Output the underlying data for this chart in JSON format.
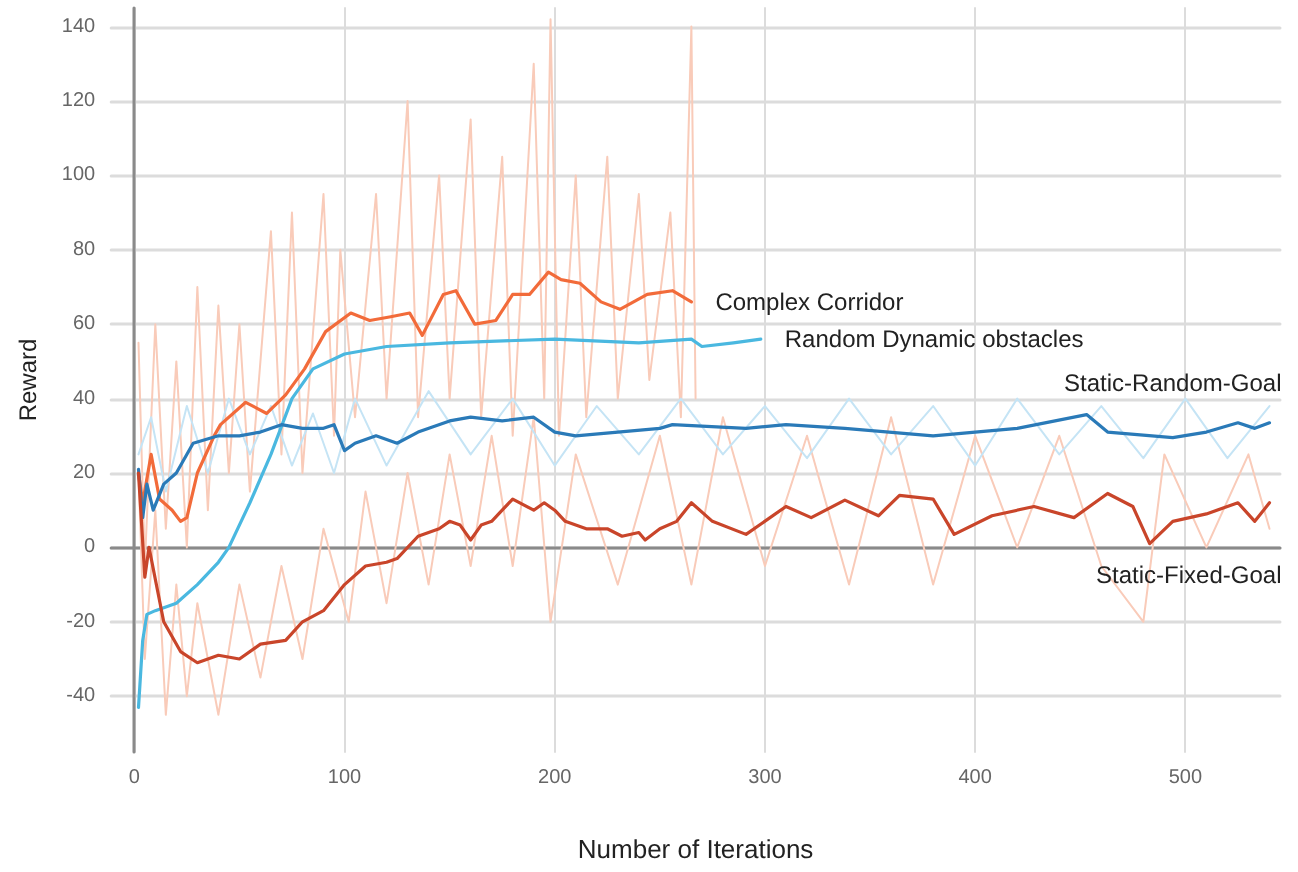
{
  "chart_data": {
    "type": "line",
    "xlabel": "Number of Iterations",
    "ylabel": "Reward",
    "xlim": [
      -11,
      545
    ],
    "ylim": [
      -55,
      145
    ],
    "xticks": [
      0,
      100,
      200,
      300,
      400,
      500
    ],
    "yticks": [
      -40,
      -20,
      0,
      20,
      40,
      60,
      80,
      100,
      120,
      140
    ],
    "grid": true,
    "marker": "none",
    "line_style": "solid",
    "series": [
      {
        "color": "#f9cbb9",
        "x": [
          2,
          5,
          10,
          15,
          20,
          25,
          30,
          35,
          40,
          45,
          50,
          55,
          65,
          70,
          75,
          80,
          90,
          95,
          98,
          105,
          115,
          120,
          130,
          135,
          145,
          150,
          160,
          165,
          175,
          180,
          190,
          195,
          198,
          202,
          210,
          215,
          225,
          230,
          240,
          245,
          255,
          260,
          265,
          267
        ],
        "values": [
          55,
          -5,
          60,
          5,
          50,
          0,
          70,
          10,
          65,
          20,
          60,
          15,
          85,
          25,
          90,
          20,
          95,
          30,
          80,
          35,
          95,
          40,
          120,
          35,
          100,
          40,
          115,
          35,
          105,
          30,
          130,
          40,
          142,
          30,
          100,
          35,
          105,
          40,
          95,
          45,
          90,
          35,
          140,
          40
        ]
      },
      {
        "color": "#f9cbb9",
        "x": [
          2,
          5,
          10,
          15,
          20,
          25,
          30,
          40,
          50,
          60,
          70,
          80,
          90,
          102,
          110,
          120,
          130,
          140,
          150,
          160,
          170,
          180,
          190,
          198,
          210,
          230,
          250,
          265,
          280,
          300,
          320,
          340,
          360,
          380,
          400,
          420,
          440,
          460,
          480,
          490,
          510,
          530,
          540
        ],
        "values": [
          20,
          -30,
          10,
          -45,
          -10,
          -40,
          -15,
          -45,
          -10,
          -35,
          -5,
          -30,
          5,
          -20,
          15,
          -15,
          20,
          -10,
          25,
          -5,
          30,
          -5,
          35,
          -20,
          25,
          -10,
          30,
          -10,
          35,
          -5,
          30,
          -10,
          35,
          -10,
          30,
          0,
          30,
          -5,
          -20,
          25,
          0,
          25,
          5
        ]
      },
      {
        "color": "#c5e4f5",
        "x": [
          2,
          8,
          15,
          25,
          35,
          45,
          55,
          65,
          75,
          85,
          95,
          105,
          120,
          140,
          160,
          180,
          200,
          220,
          240,
          260,
          280,
          300,
          320,
          340,
          360,
          380,
          400,
          420,
          440,
          460,
          480,
          500,
          520,
          540
        ],
        "values": [
          25,
          35,
          15,
          38,
          20,
          40,
          25,
          38,
          22,
          36,
          20,
          40,
          22,
          42,
          25,
          40,
          22,
          38,
          25,
          40,
          25,
          38,
          24,
          40,
          25,
          38,
          22,
          40,
          25,
          38,
          24,
          40,
          24,
          38
        ]
      },
      {
        "name": "Complex Corridor",
        "color": "#f26b3a",
        "x": [
          2,
          4,
          8,
          12,
          18,
          22,
          25,
          30,
          38,
          41,
          53,
          63,
          72,
          81,
          91,
          103,
          112,
          122,
          131,
          137,
          147,
          153,
          162,
          172,
          180,
          188,
          197,
          203,
          212,
          222,
          231,
          244,
          256,
          265
        ],
        "values": [
          20,
          12,
          25,
          13,
          10,
          7,
          8,
          20,
          30,
          33,
          39,
          36,
          41,
          48,
          58,
          63,
          61,
          62,
          63,
          57,
          68,
          69,
          60,
          61,
          68,
          68,
          74,
          72,
          71,
          66,
          64,
          68,
          69,
          66
        ]
      },
      {
        "name": "Random Dynamic obstacles",
        "color": "#4ab8e0",
        "x": [
          2,
          4,
          6,
          10,
          20,
          30,
          40,
          45,
          55,
          65,
          75,
          85,
          100,
          120,
          150,
          200,
          240,
          265,
          270,
          285,
          298
        ],
        "values": [
          -43,
          -25,
          -18,
          -17,
          -15,
          -10,
          -4,
          0,
          12,
          25,
          40,
          48,
          52,
          54,
          55,
          56,
          55,
          56,
          54,
          55,
          56
        ]
      },
      {
        "name": "Static-Random-Goal",
        "color": "#2a7ab8",
        "x": [
          2,
          4,
          6,
          9,
          14,
          20,
          28,
          40,
          50,
          60,
          70,
          80,
          90,
          95,
          100,
          105,
          115,
          125,
          135,
          150,
          160,
          175,
          190,
          200,
          210,
          230,
          250,
          256,
          291,
          310,
          338,
          380,
          420,
          453,
          463,
          494,
          510,
          525,
          533,
          540
        ],
        "values": [
          21,
          8,
          17,
          10,
          17,
          20,
          28,
          30,
          30,
          31,
          33,
          32,
          32,
          33,
          26,
          28,
          30,
          28,
          31,
          34,
          35,
          34,
          35,
          31,
          30,
          31,
          32,
          33,
          32,
          33,
          32,
          30,
          32,
          35.7,
          31,
          29.5,
          31,
          33.5,
          32,
          33.5
        ]
      },
      {
        "name": "Static-Fixed-Goal",
        "color": "#c9452a",
        "x": [
          2,
          5,
          7,
          14,
          22,
          30,
          40,
          50,
          60,
          72,
          80,
          90,
          100,
          110,
          120,
          125,
          135,
          145,
          150,
          155,
          160,
          165,
          170,
          175,
          180,
          190,
          195,
          200,
          205,
          215,
          225,
          232,
          240,
          243,
          250,
          258,
          265,
          275,
          291,
          310,
          322,
          338,
          354,
          364,
          380,
          390,
          408,
          428,
          447,
          463,
          475,
          483,
          494,
          510,
          525,
          533,
          540
        ],
        "values": [
          20,
          -8,
          0,
          -20,
          -28,
          -31,
          -29,
          -30,
          -26,
          -25,
          -20,
          -17,
          -10,
          -5,
          -4,
          -3,
          3,
          5,
          7,
          6,
          2,
          6,
          7,
          10,
          13,
          10,
          12,
          10,
          7,
          5,
          5,
          3,
          4,
          2,
          5,
          7,
          12,
          7,
          3.5,
          11,
          8,
          12.7,
          8.5,
          14,
          13,
          3.5,
          8.5,
          11,
          8,
          14.5,
          11,
          1,
          7,
          9,
          12,
          7,
          12
        ]
      }
    ]
  }
}
